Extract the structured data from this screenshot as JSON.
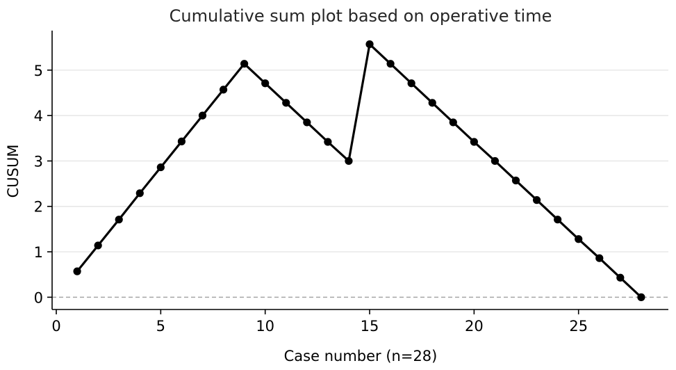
{
  "chart_data": {
    "type": "line",
    "title": "Cumulative sum plot based on operative time",
    "xlabel": "Case number (n=28)",
    "ylabel": "CUSUM",
    "xlim": [
      -0.2,
      29.3
    ],
    "ylim": [
      -0.27,
      5.87
    ],
    "xticks": [
      0,
      5,
      10,
      15,
      20,
      25
    ],
    "yticks": [
      0,
      1,
      2,
      3,
      4,
      5
    ],
    "grid": "horizontal",
    "reference_line": {
      "y": 0,
      "style": "dashed",
      "color": "#a6a6a6"
    },
    "series": [
      {
        "color": "#000000",
        "x": [
          1,
          2,
          3,
          4,
          5,
          6,
          7,
          8,
          9,
          10,
          11,
          12,
          13,
          14,
          15,
          16,
          17,
          18,
          19,
          20,
          21,
          22,
          23,
          24,
          25,
          26,
          27,
          28
        ],
        "y": [
          0.57,
          1.14,
          1.71,
          2.29,
          2.86,
          3.43,
          4.0,
          4.57,
          5.14,
          4.71,
          4.28,
          3.85,
          3.42,
          3.0,
          5.57,
          5.14,
          4.71,
          4.28,
          3.85,
          3.42,
          3.0,
          2.57,
          2.14,
          1.71,
          1.28,
          0.86,
          0.43,
          0.0
        ]
      }
    ]
  }
}
